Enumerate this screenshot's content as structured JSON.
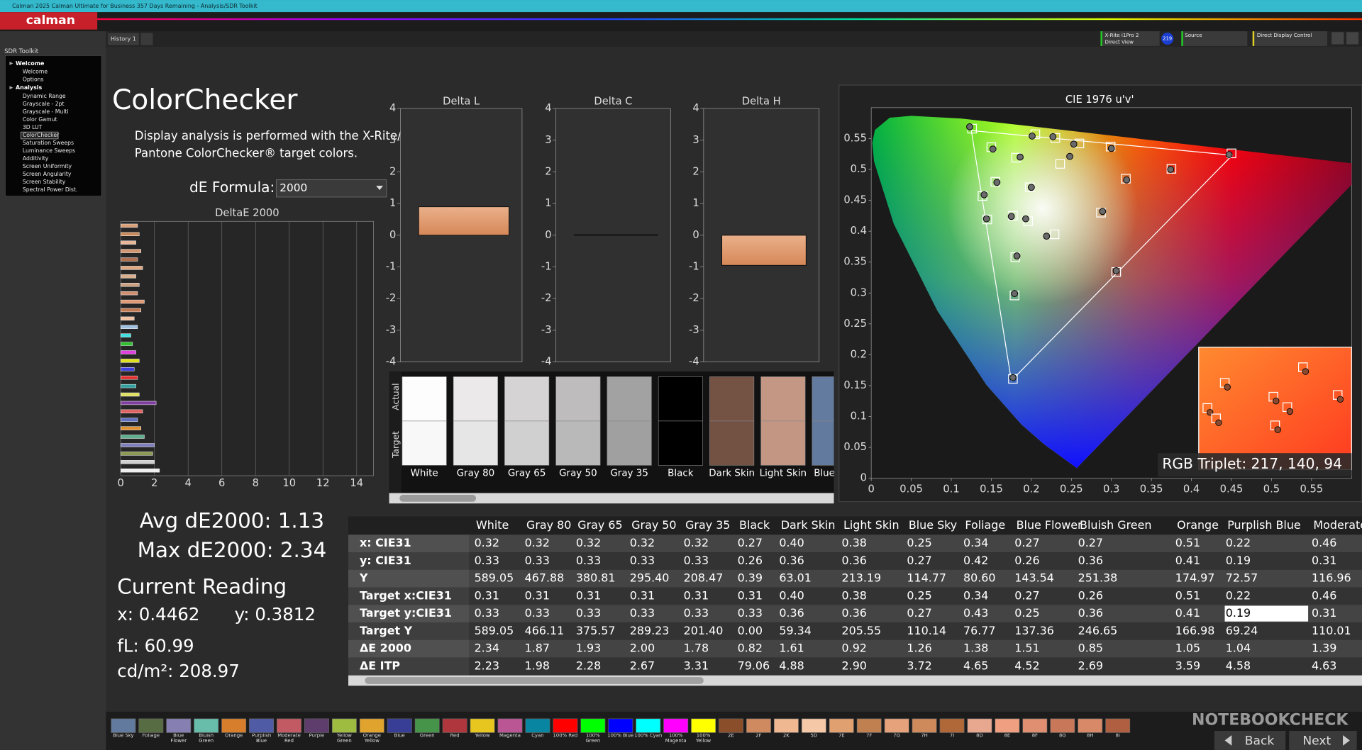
{
  "window": {
    "title": "Calman 2025 Calman Ultimate for Business 357 Days Remaining - Analysis/SDR Toolkit",
    "logo": "calman"
  },
  "tabs": [
    "History 1"
  ],
  "toolbar": {
    "meter": [
      "X-Rite i1Pro 2",
      "Direct View"
    ],
    "badge": "219",
    "source": "Source",
    "display": "Direct Display Control"
  },
  "sidebar": {
    "title": "SDR Toolkit",
    "selected": "ColorChecker",
    "groups": [
      {
        "label": "Welcome",
        "children": [
          "Welcome",
          "Options"
        ]
      },
      {
        "label": "Analysis",
        "children": [
          "Dynamic Range",
          "Grayscale - 2pt",
          "Grayscale - Multi",
          "Color Gamut",
          "3D LUT",
          "ColorChecker",
          "Saturation Sweeps",
          "Luminance Sweeps",
          "Additivity",
          "Screen Uniformity",
          "Screen Angularity",
          "Screen Stability",
          "Spectral Power Dist."
        ]
      }
    ]
  },
  "panel": {
    "title": "ColorChecker",
    "description": [
      "Display analysis is performed with the X-Rite/",
      "Pantone ColorChecker® target colors."
    ],
    "formula_label": "dE Formula:",
    "formula": "2000"
  },
  "stats": {
    "avg": "Avg dE2000: 1.13",
    "max": "Max dE2000: 2.34",
    "current_title": "Current Reading",
    "x": "x: 0.4462",
    "y": "y: 0.3812",
    "fl": "fL: 60.99",
    "cdm2": "cd/m²: 208.97"
  },
  "chart_data": [
    {
      "type": "hbar",
      "title": "DeltaE 2000",
      "xlim": [
        0,
        15
      ],
      "xticks": [
        0,
        2,
        4,
        6,
        8,
        10,
        12,
        14
      ],
      "grid": true,
      "values": [
        1.0,
        1.1,
        0.9,
        1.2,
        1.0,
        1.3,
        0.9,
        1.1,
        1.0,
        1.4,
        1.2,
        0.8,
        1.0,
        0.6,
        0.7,
        0.9,
        1.1,
        0.8,
        1.0,
        0.9,
        1.1,
        2.1,
        1.3,
        1.0,
        1.2,
        1.4,
        2.0,
        1.9,
        2.0,
        2.3
      ],
      "colors": [
        "#d9a07a",
        "#c98a5c",
        "#e8b898",
        "#d49670",
        "#b07050",
        "#e0a882",
        "#d8b090",
        "#caa080",
        "#d09070",
        "#e09870",
        "#c07850",
        "#f0c0a0",
        "#a0c0e0",
        "#40e0e0",
        "#30c030",
        "#e040e0",
        "#e0e020",
        "#4040e0",
        "#e03030",
        "#30a0a0",
        "#e0e060",
        "#8040a0",
        "#e06060",
        "#6070c0",
        "#e09030",
        "#60b090",
        "#8080c0",
        "#8a9a50",
        "#d0d0d0",
        "#f0f0f0"
      ]
    },
    {
      "type": "bar",
      "title": "Delta L",
      "values": [
        0.9
      ],
      "color": "#e09a70",
      "ylim": [
        -4,
        4
      ],
      "yticks": [
        -4,
        -3,
        -2,
        -1,
        0,
        1,
        2,
        3,
        4
      ]
    },
    {
      "type": "bar",
      "title": "Delta C",
      "values": [
        0.02
      ],
      "color": "#e09a70",
      "ylim": [
        -4,
        4
      ],
      "yticks": [
        -4,
        -3,
        -2,
        -1,
        0,
        1,
        2,
        3,
        4
      ]
    },
    {
      "type": "bar",
      "title": "Delta H",
      "values": [
        -0.95
      ],
      "color": "#e09a70",
      "ylim": [
        -4,
        4
      ],
      "yticks": [
        -4,
        -3,
        -2,
        -1,
        0,
        1,
        2,
        3,
        4
      ]
    },
    {
      "type": "scatter",
      "title": "CIE 1976 u'v'",
      "xlim": [
        0,
        0.6
      ],
      "ylim": [
        0,
        0.6
      ],
      "xticks": [
        0,
        0.05,
        0.1,
        0.15,
        0.2,
        0.25,
        0.3,
        0.35,
        0.4,
        0.45,
        0.5,
        0.55
      ],
      "yticks": [
        0,
        0.05,
        0.1,
        0.15,
        0.2,
        0.25,
        0.3,
        0.35,
        0.4,
        0.45,
        0.5,
        0.55
      ],
      "series": [
        {
          "marker": "square",
          "color": "#ffffff",
          "x": [
            0.126,
            0.15,
            0.205,
            0.23,
            0.299,
            0.45,
            0.375,
            0.318,
            0.181,
            0.155,
            0.139,
            0.198,
            0.145,
            0.177,
            0.196,
            0.229,
            0.287,
            0.306,
            0.18,
            0.179,
            0.177,
            0.26,
            0.236
          ],
          "values": [
            0.566,
            0.536,
            0.557,
            0.551,
            0.537,
            0.526,
            0.501,
            0.485,
            0.519,
            0.48,
            0.457,
            0.471,
            0.419,
            0.425,
            0.416,
            0.395,
            0.43,
            0.334,
            0.358,
            0.296,
            0.161,
            0.542,
            0.509
          ]
        },
        {
          "marker": "circle",
          "color": "#6a6a6a",
          "x": [
            0.123,
            0.152,
            0.201,
            0.227,
            0.3,
            0.447,
            0.374,
            0.319,
            0.186,
            0.157,
            0.141,
            0.2,
            0.144,
            0.175,
            0.193,
            0.219,
            0.289,
            0.306,
            0.182,
            0.179,
            0.177,
            0.253,
            0.248
          ],
          "values": [
            0.569,
            0.533,
            0.554,
            0.553,
            0.534,
            0.524,
            0.5,
            0.483,
            0.52,
            0.479,
            0.459,
            0.471,
            0.42,
            0.424,
            0.42,
            0.392,
            0.432,
            0.336,
            0.36,
            0.299,
            0.163,
            0.541,
            0.521
          ]
        }
      ]
    }
  ],
  "swatches": {
    "labels": [
      "Actual",
      "Target"
    ],
    "names": [
      "White",
      "Gray 80",
      "Gray 65",
      "Gray 50",
      "Gray 35",
      "Black",
      "Dark Skin",
      "Light Skin",
      "Blue Sky"
    ],
    "actual": [
      "#fdfdfd",
      "#ebe9e9",
      "#d5d3d3",
      "#bebcbc",
      "#a3a2a2",
      "#000000",
      "#745244",
      "#c39784",
      "#627b9f"
    ],
    "target": [
      "#f8f8f8",
      "#e6e6e6",
      "#d0d0d0",
      "#b9b9b9",
      "#a0a0a0",
      "#000000",
      "#735244",
      "#c29682",
      "#627a9d"
    ]
  },
  "readout": "RGB Triplet: 217, 140, 94",
  "table": {
    "selected": [
      4,
      13
    ],
    "columns": [
      "White",
      "Gray 80",
      "Gray 65",
      "Gray 50",
      "Gray 35",
      "Black",
      "Dark Skin",
      "Light Skin",
      "Blue Sky",
      "Foliage",
      "Blue Flower",
      "Bluish Green",
      "Orange",
      "Purplish Blue",
      "Moderate Red"
    ],
    "rows": [
      {
        "label": "x: CIE31",
        "cells": [
          "0.32",
          "0.32",
          "0.32",
          "0.32",
          "0.32",
          "0.27",
          "0.40",
          "0.38",
          "0.25",
          "0.34",
          "0.27",
          "0.27",
          "0.51",
          "0.22",
          "0.46"
        ]
      },
      {
        "label": "y: CIE31",
        "cells": [
          "0.33",
          "0.33",
          "0.33",
          "0.33",
          "0.33",
          "0.26",
          "0.36",
          "0.36",
          "0.27",
          "0.42",
          "0.26",
          "0.36",
          "0.41",
          "0.19",
          "0.31"
        ]
      },
      {
        "label": "Y",
        "cells": [
          "589.05",
          "467.88",
          "380.81",
          "295.40",
          "208.47",
          "0.39",
          "63.01",
          "213.19",
          "114.77",
          "80.60",
          "143.54",
          "251.38",
          "174.97",
          "72.57",
          "116.96"
        ]
      },
      {
        "label": "Target x:CIE31",
        "cells": [
          "0.31",
          "0.31",
          "0.31",
          "0.31",
          "0.31",
          "0.31",
          "0.40",
          "0.38",
          "0.25",
          "0.34",
          "0.27",
          "0.26",
          "0.51",
          "0.22",
          "0.46"
        ]
      },
      {
        "label": "Target y:CIE31",
        "cells": [
          "0.33",
          "0.33",
          "0.33",
          "0.33",
          "0.33",
          "0.33",
          "0.36",
          "0.36",
          "0.27",
          "0.43",
          "0.25",
          "0.36",
          "0.41",
          "0.19",
          "0.31"
        ]
      },
      {
        "label": "Target Y",
        "cells": [
          "589.05",
          "466.11",
          "375.57",
          "289.23",
          "201.40",
          "0.00",
          "59.34",
          "205.55",
          "110.14",
          "76.77",
          "137.36",
          "246.65",
          "166.98",
          "69.24",
          "110.01"
        ]
      },
      {
        "label": "ΔE 2000",
        "cells": [
          "2.34",
          "1.87",
          "1.93",
          "2.00",
          "1.78",
          "0.82",
          "1.61",
          "0.92",
          "1.26",
          "1.38",
          "1.51",
          "0.85",
          "1.05",
          "1.04",
          "1.39"
        ]
      },
      {
        "label": "ΔE ITP",
        "cells": [
          "2.23",
          "1.98",
          "2.28",
          "2.67",
          "3.31",
          "79.06",
          "4.88",
          "2.90",
          "3.72",
          "4.65",
          "4.52",
          "2.69",
          "3.59",
          "4.58",
          "4.63"
        ]
      }
    ]
  },
  "strip": {
    "names": [
      "Blue Sky",
      "Foliage",
      "Blue Flower",
      "Bluish Green",
      "Orange",
      "Purplish Blue",
      "Moderate Red",
      "Purple",
      "Yellow Green",
      "Orange Yellow",
      "Blue",
      "Green",
      "Red",
      "Yellow",
      "Magenta",
      "Cyan",
      "100% Red",
      "100% Green",
      "100% Blue",
      "100% Cyan",
      "100% Magenta",
      "100% Yellow",
      "2E",
      "2F",
      "2K",
      "5D",
      "7E",
      "7F",
      "7G",
      "7H",
      "7I",
      "8D",
      "8E",
      "8F",
      "8G",
      "8H",
      "8I"
    ],
    "colors": [
      "#627a9d",
      "#576c43",
      "#8580b1",
      "#67bdaa",
      "#d67e2c",
      "#505ba6",
      "#c15a63",
      "#5e3c6c",
      "#9dbc40",
      "#e0a32e",
      "#383d96",
      "#469449",
      "#af363c",
      "#e7c71f",
      "#bb5695",
      "#0885a1",
      "#ff0000",
      "#00ff00",
      "#0000ff",
      "#00ffff",
      "#ff00ff",
      "#ffff00",
      "#8a4f2a",
      "#d08a60",
      "#f0b890",
      "#f5c8a8",
      "#e0a070",
      "#c08050",
      "#e6a27a",
      "#cf8a5c",
      "#b06838",
      "#e8a890",
      "#f0a080",
      "#e09070",
      "#c87858",
      "#d88a68",
      "#b06040"
    ]
  },
  "nav": {
    "back": "Back",
    "next": "Next"
  },
  "watermark": "NOTEBOOKCHECK"
}
